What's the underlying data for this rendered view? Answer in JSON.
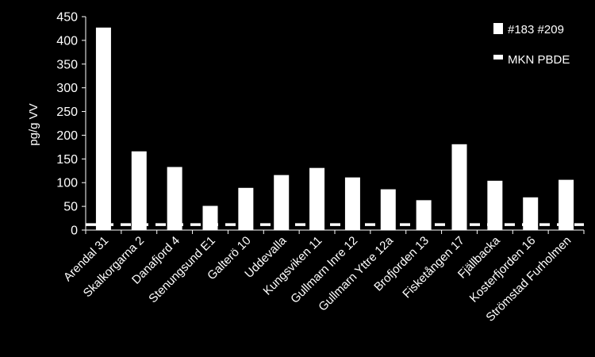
{
  "chart_data": {
    "type": "bar",
    "categories": [
      "Arendal 31",
      "Skalkorgarna 2",
      "Danafjord 4",
      "Stenungsund E1",
      "Galterö 10",
      "Uddevalla",
      "Kungsviken 11",
      "Gullmarn Inre 12",
      "Gullmarn Yttre 12a",
      "Brofjorden 13",
      "Fisketången 17",
      "Fjällbacka",
      "Kosterfjorden 16",
      "Strömstad Furholmen"
    ],
    "series": [
      {
        "name": "#183 #209",
        "values": [
          427,
          166,
          133,
          51,
          89,
          116,
          131,
          111,
          86,
          63,
          181,
          104,
          69,
          106
        ]
      }
    ],
    "reference_line": {
      "name": "MKN PBDE",
      "value": 11.4,
      "style": "dashed"
    },
    "xlabel": "",
    "ylabel": "pg/g VV",
    "ylim": [
      0,
      450
    ],
    "yticks": [
      0,
      50,
      100,
      150,
      200,
      250,
      300,
      350,
      400,
      450
    ],
    "grid": false,
    "legend_position": "top-right",
    "colors": {
      "background": "#000000",
      "bars": "#ffffff",
      "axes": "#ffffff",
      "text": "#ffffff",
      "reference_line": "#ffffff"
    }
  }
}
